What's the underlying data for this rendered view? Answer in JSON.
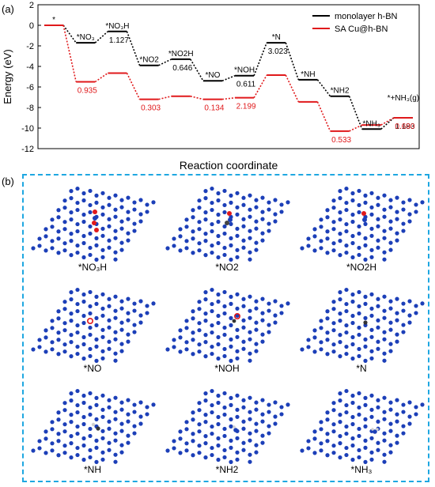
{
  "panel_labels": {
    "a": "(a)",
    "b": "(b)"
  },
  "chart_data": {
    "type": "line",
    "ylabel": "Energy (eV)",
    "xlabel": "Reaction coordinate",
    "ylim": [
      -12,
      2
    ],
    "yticks": [
      2,
      0,
      -2,
      -4,
      -6,
      -8,
      -10,
      -12
    ],
    "legend": {
      "placement": "top-right"
    },
    "colors": {
      "monolayer": "#000000",
      "sacu": "#e0191b"
    },
    "steps": [
      "*",
      "*NO3",
      "*NO3H",
      "*NO2",
      "*NO2H",
      "*NO",
      "*NOH",
      "*N",
      "*NH",
      "*NH2",
      "*NH3",
      "*+NH3(g)"
    ],
    "step_labels": [
      "*",
      "*NO₃",
      "*NO₃H",
      "*NO2",
      "*NO2H",
      "*NO",
      "*NOH",
      "*N",
      "*NH",
      "*NH2",
      "*NH₃",
      "*+NH₃(g)"
    ],
    "series": [
      {
        "name": "monolayer h-BN",
        "values": [
          0,
          -1.7,
          -0.6,
          -3.9,
          -3.3,
          -5.4,
          -4.9,
          -1.7,
          -5.3,
          -6.9,
          -10.1,
          -9.0
        ],
        "annotations": [
          {
            "step": 2,
            "text": "1.127"
          },
          {
            "step": 4,
            "text": "0.646"
          },
          {
            "step": 6,
            "text": "0.611"
          },
          {
            "step": 7,
            "text": "3.023"
          },
          {
            "step": 11,
            "text": "1.183"
          }
        ]
      },
      {
        "name": "SA Cu@h-BN",
        "values": [
          0,
          -5.5,
          -4.65,
          -7.2,
          -6.9,
          -7.2,
          -7.05,
          -4.85,
          -7.45,
          -10.3,
          -9.7,
          -9.0
        ],
        "annotations": [
          {
            "step": 1,
            "text": "0.935"
          },
          {
            "step": 3,
            "text": "0.303"
          },
          {
            "step": 5,
            "text": "0.134"
          },
          {
            "step": 6,
            "text": "2.199"
          },
          {
            "step": 9,
            "text": "0.533"
          },
          {
            "step": 11,
            "text": "0.690"
          }
        ]
      }
    ]
  },
  "structures": [
    {
      "label": "*NO₃H",
      "adsorbate": "NO3H"
    },
    {
      "label": "*NO2",
      "adsorbate": "NO2"
    },
    {
      "label": "*NO2H",
      "adsorbate": "NO2H"
    },
    {
      "label": "*NO",
      "adsorbate": "NO"
    },
    {
      "label": "*NOH",
      "adsorbate": "NOH"
    },
    {
      "label": "*N",
      "adsorbate": "N"
    },
    {
      "label": "*NH",
      "adsorbate": "NH"
    },
    {
      "label": "*NH2",
      "adsorbate": "NH2"
    },
    {
      "label": "*NH₃",
      "adsorbate": "NH3"
    }
  ],
  "atom_colors": {
    "boron": "#2fa52f",
    "nitrogen": "#1c3fb8",
    "oxygen": "#e0191b",
    "hydrogen": "#d0d0d0"
  }
}
